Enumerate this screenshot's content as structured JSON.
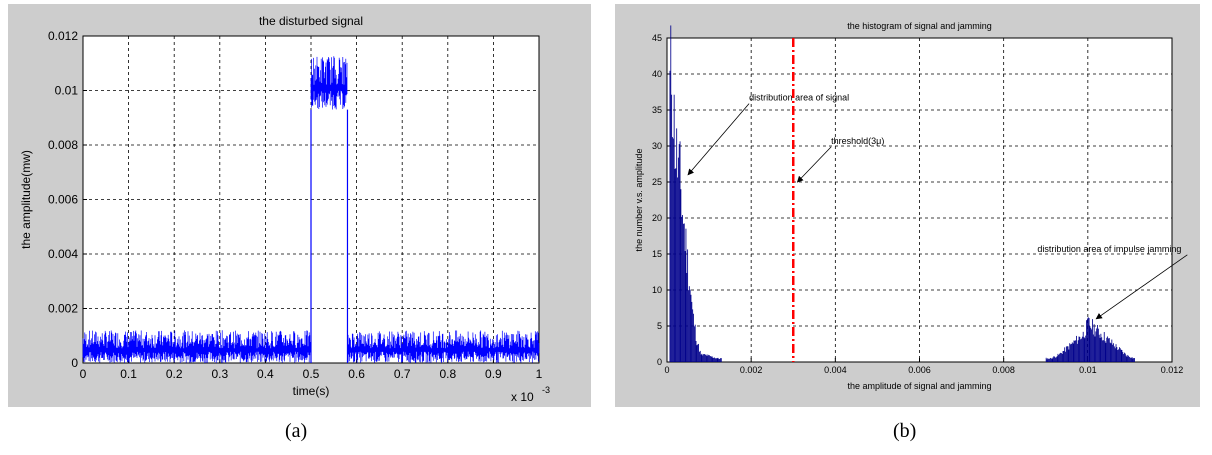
{
  "chart_data": [
    {
      "id": "a",
      "type": "line",
      "title": "the disturbed signal",
      "xlabel": "time(s)",
      "ylabel": "the amplitude(mw)",
      "x_scale_label": "x 10",
      "x_scale_exponent": "-3",
      "xlim": [
        0,
        1
      ],
      "ylim": [
        0,
        0.012
      ],
      "xticks": [
        "0",
        "0.1",
        "0.2",
        "0.3",
        "0.4",
        "0.5",
        "0.6",
        "0.7",
        "0.8",
        "0.9",
        "1"
      ],
      "yticks": [
        "0",
        "0.002",
        "0.004",
        "0.006",
        "0.008",
        "0.01",
        "0.012"
      ],
      "grid": true,
      "series_color": "#0000ff",
      "segments": [
        {
          "x_start": 0,
          "x_end": 0.5,
          "y_min": 0,
          "y_max": 0.0012
        },
        {
          "x_start": 0.5,
          "x_end": 0.58,
          "y_min": 0.0093,
          "y_max": 0.0113
        },
        {
          "x_start": 0.58,
          "x_end": 1,
          "y_min": 0,
          "y_max": 0.0012
        }
      ],
      "caption": "(a)"
    },
    {
      "id": "b",
      "type": "bar",
      "title": "the histogram of signal and jamming",
      "xlabel": "the amplitude of signal and jamming",
      "ylabel": "the number v.s. amplitude",
      "xlim": [
        0,
        0.012
      ],
      "ylim": [
        0,
        45
      ],
      "xticks": [
        "0",
        "0.002",
        "0.004",
        "0.006",
        "0.008",
        "0.01",
        "0.012"
      ],
      "yticks": [
        "0",
        "5",
        "10",
        "15",
        "20",
        "25",
        "30",
        "35",
        "40",
        "45"
      ],
      "grid": true,
      "bar_color": "#00008b",
      "threshold": {
        "x": 0.003,
        "color": "#ff0000"
      },
      "bins": [
        {
          "x": 5e-05,
          "count": 38
        },
        {
          "x": 0.0001,
          "count": 42
        },
        {
          "x": 0.00015,
          "count": 35
        },
        {
          "x": 0.0002,
          "count": 30
        },
        {
          "x": 0.00025,
          "count": 28
        },
        {
          "x": 0.0003,
          "count": 26
        },
        {
          "x": 0.00035,
          "count": 22
        },
        {
          "x": 0.0004,
          "count": 19
        },
        {
          "x": 0.00045,
          "count": 16
        },
        {
          "x": 0.0005,
          "count": 13
        },
        {
          "x": 0.00055,
          "count": 10
        },
        {
          "x": 0.0006,
          "count": 7
        },
        {
          "x": 0.00065,
          "count": 5
        },
        {
          "x": 0.0007,
          "count": 3
        },
        {
          "x": 0.00075,
          "count": 2
        },
        {
          "x": 0.0008,
          "count": 1
        },
        {
          "x": 0.0009,
          "count": 1
        },
        {
          "x": 0.0012,
          "count": 0.5
        },
        {
          "x": 0.0091,
          "count": 0.5
        },
        {
          "x": 0.0093,
          "count": 1
        },
        {
          "x": 0.0095,
          "count": 2
        },
        {
          "x": 0.0097,
          "count": 3
        },
        {
          "x": 0.0099,
          "count": 4
        },
        {
          "x": 0.01,
          "count": 5.5
        },
        {
          "x": 0.0101,
          "count": 5
        },
        {
          "x": 0.0103,
          "count": 4
        },
        {
          "x": 0.0105,
          "count": 3
        },
        {
          "x": 0.0107,
          "count": 2
        },
        {
          "x": 0.0109,
          "count": 1
        },
        {
          "x": 0.0111,
          "count": 0.5
        }
      ],
      "annotations": [
        {
          "text": "distribution area of signal",
          "x": 0.00195,
          "y": 36.3,
          "arrow_to": [
            0.0005,
            26
          ]
        },
        {
          "text": "threshold(3μ)",
          "x": 0.0039,
          "y": 30.3,
          "arrow_to": [
            0.0031,
            25
          ]
        },
        {
          "text": "distribution area of impulse jamming",
          "x": 0.0088,
          "y": 15.3,
          "arrow_to": [
            0.0102,
            6
          ]
        }
      ],
      "caption": "(b)"
    }
  ]
}
